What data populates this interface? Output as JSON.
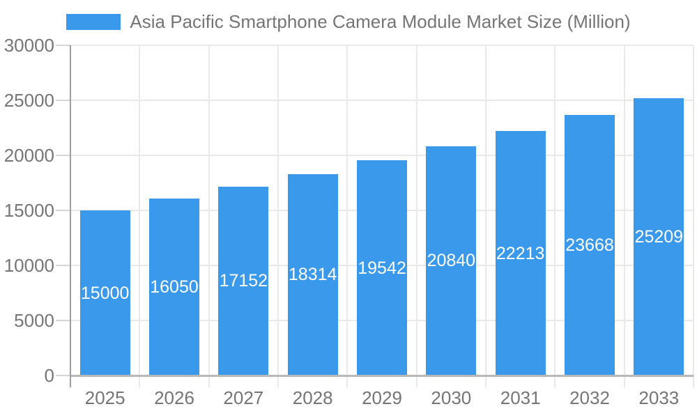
{
  "chart_data": {
    "type": "bar",
    "title": "Asia Pacific Smartphone Camera Module Market Size (Million)",
    "legend": {
      "position": "top",
      "label": "Asia Pacific Smartphone Camera Module Market Size (Million)"
    },
    "categories": [
      "2025",
      "2026",
      "2027",
      "2028",
      "2029",
      "2030",
      "2031",
      "2032",
      "2033"
    ],
    "values": [
      15000,
      16050,
      17152,
      18314,
      19542,
      20840,
      22213,
      23668,
      25209
    ],
    "data_labels_shown": true,
    "xlabel": "",
    "ylabel": "",
    "ylim": [
      0,
      30000
    ],
    "ytick_step": 5000,
    "ytick_labels": [
      "0",
      "5000",
      "10000",
      "15000",
      "20000",
      "25000",
      "30000"
    ],
    "grid": true,
    "legend_position": "top",
    "colors": {
      "bar": "#3B99EC",
      "bar_label_text": "#FFFFFF",
      "axis_text": "#757575",
      "legend_text": "#757575",
      "gridline": "#E9E9E9",
      "baseline": "#B8B8B8",
      "axis_line": "#9E9E9E",
      "tick": "#D6D6D6",
      "background": "#FFFFFF"
    }
  }
}
